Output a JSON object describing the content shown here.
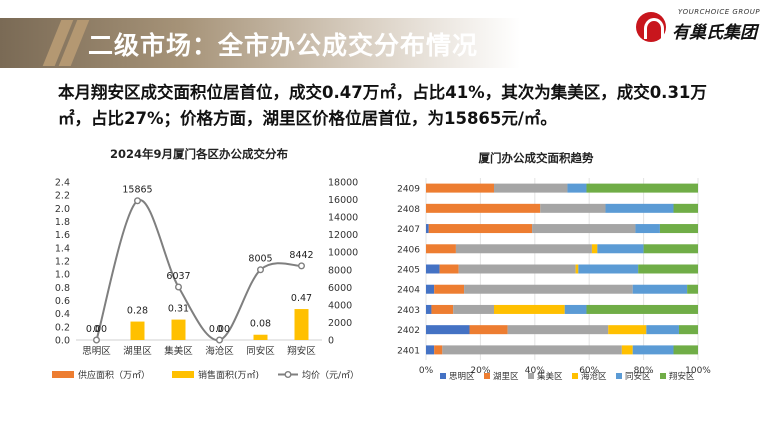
{
  "header": {
    "title": "二级市场：全市办公成交分布情况",
    "logo_en": "YOURCHOICE GROUP",
    "logo_cn": "有巢氏集团",
    "logo_icon": "house-logo-icon"
  },
  "summary": "本月翔安区成交面积位居首位，成交0.47万㎡，占比41%，其次为集美区，成交0.31万㎡，占比27%；价格方面，湖里区价格位居首位，为15865元/㎡。",
  "colors": {
    "supply": "#ed7d31",
    "sales": "#ffc000",
    "price": "#7f7f7f",
    "title_band": "#a69378"
  },
  "chart_data": [
    {
      "type": "bar",
      "title": "2024年9月厦门各区办公成交分布",
      "categories": [
        "思明区",
        "湖里区",
        "集美区",
        "海沧区",
        "同安区",
        "翔安区"
      ],
      "series": [
        {
          "name": "供应面积（万㎡）",
          "type": "bar",
          "color": "#ed7d31",
          "values": [
            0,
            0,
            0,
            0,
            0,
            0
          ]
        },
        {
          "name": "销售面积(万㎡)",
          "type": "bar",
          "color": "#ffc000",
          "values": [
            0.0,
            0.28,
            0.31,
            0.0,
            0.08,
            0.47
          ],
          "labels": [
            "0.00",
            "0.28",
            "0.31",
            "0.00",
            "0.08",
            "0.47"
          ]
        },
        {
          "name": "均价（元/㎡）",
          "type": "line",
          "axis": "right",
          "color": "#7f7f7f",
          "values": [
            0,
            15865,
            6037,
            0,
            8005,
            8442
          ],
          "labels": [
            "0",
            "15865",
            "6037",
            "0",
            "8005",
            "8442"
          ]
        }
      ],
      "ylim": [
        0,
        2.4
      ],
      "yticks": [
        "0.0",
        "0.2",
        "0.4",
        "0.6",
        "0.8",
        "1.0",
        "1.2",
        "1.4",
        "1.6",
        "1.8",
        "2.0",
        "2.2",
        "2.4"
      ],
      "y2lim": [
        0,
        18000
      ],
      "y2ticks": [
        "0",
        "2000",
        "4000",
        "6000",
        "8000",
        "10000",
        "12000",
        "14000",
        "16000",
        "18000"
      ],
      "legend": "bottom"
    },
    {
      "type": "bar",
      "orientation": "horizontal",
      "stacked": "percent",
      "title": "厦门办公成交面积趋势",
      "categories": [
        "2409",
        "2408",
        "2407",
        "2406",
        "2405",
        "2404",
        "2403",
        "2402",
        "2401"
      ],
      "series": [
        {
          "name": "思明区",
          "color": "#4472c4",
          "values": [
            0,
            0,
            1,
            0,
            5,
            3,
            2,
            16,
            3
          ]
        },
        {
          "name": "湖里区",
          "color": "#ed7d31",
          "values": [
            25,
            42,
            38,
            11,
            7,
            11,
            8,
            14,
            3
          ]
        },
        {
          "name": "集美区",
          "color": "#a5a5a5",
          "values": [
            27,
            24,
            38,
            50,
            43,
            62,
            15,
            37,
            66
          ]
        },
        {
          "name": "海沧区",
          "color": "#ffc000",
          "values": [
            0,
            0,
            0,
            2,
            1,
            0,
            26,
            14,
            4
          ]
        },
        {
          "name": "同安区",
          "color": "#5b9bd5",
          "values": [
            7,
            25,
            9,
            17,
            22,
            20,
            8,
            12,
            15
          ]
        },
        {
          "name": "翔安区",
          "color": "#70ad47",
          "values": [
            41,
            9,
            14,
            20,
            22,
            4,
            41,
            7,
            9
          ]
        }
      ],
      "xlim": [
        0,
        100
      ],
      "xticks": [
        "0%",
        "20%",
        "40%",
        "60%",
        "80%",
        "100%"
      ],
      "legend": "bottom"
    }
  ]
}
